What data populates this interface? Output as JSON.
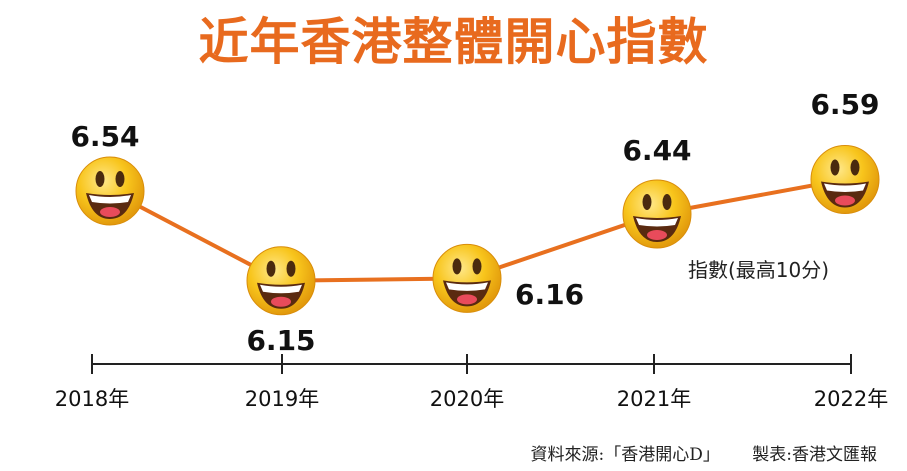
{
  "chart_data": {
    "type": "line",
    "title": "近年香港整體開心指數",
    "categories": [
      "2018年",
      "2019年",
      "2020年",
      "2021年",
      "2022年"
    ],
    "values": [
      6.54,
      6.15,
      6.16,
      6.44,
      6.59
    ],
    "value_labels": [
      "6.54",
      "6.15",
      "6.16",
      "6.44",
      "6.59"
    ],
    "unit_note": "指數(最高10分)",
    "ylim": [
      6.0,
      6.7
    ],
    "grid": false,
    "marker": "smiley-emoji",
    "colors": {
      "title": "#e86a1e",
      "line": "#e8701f",
      "axis": "#222222",
      "face": "#f7c21b"
    }
  },
  "footer": {
    "source": "資料來源:「香港開心D」",
    "made_by": "製表:香港文匯報"
  }
}
